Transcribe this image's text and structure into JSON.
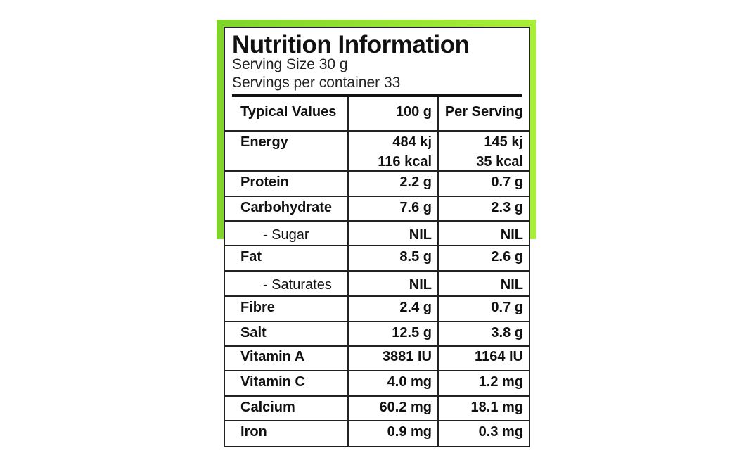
{
  "header": {
    "title": "Nutrition Information",
    "serving_size": "Serving Size 30 g",
    "servings_per_container": "Servings per container 33"
  },
  "table": {
    "columns": [
      "Typical Values",
      "100 g",
      "Per Serving"
    ],
    "rows": [
      [
        "Energy",
        [
          "484 kj",
          "116 kcal"
        ],
        [
          "145 kj",
          "35 kcal"
        ]
      ],
      [
        "Protein",
        "2.2 g",
        "0.7 g"
      ],
      [
        "Carbohydrate",
        "7.6 g",
        "2.3 g"
      ],
      [
        "- Sugar",
        "NIL",
        "NIL"
      ],
      [
        "Fat",
        "8.5 g",
        "2.6 g"
      ],
      [
        "- Saturates",
        "NIL",
        "NIL"
      ],
      [
        "Fibre",
        "2.4 g",
        "0.7 g"
      ],
      [
        "Salt",
        "12.5 g",
        "3.8 g"
      ],
      [
        "Vitamin A",
        "3881 IU",
        "1164 IU"
      ],
      [
        "Vitamin C",
        "4.0 mg",
        "1.2 mg"
      ],
      [
        "Calcium",
        "60.2 mg",
        "18.1 mg"
      ],
      [
        "Iron",
        "0.9 mg",
        "0.3 mg"
      ]
    ]
  }
}
